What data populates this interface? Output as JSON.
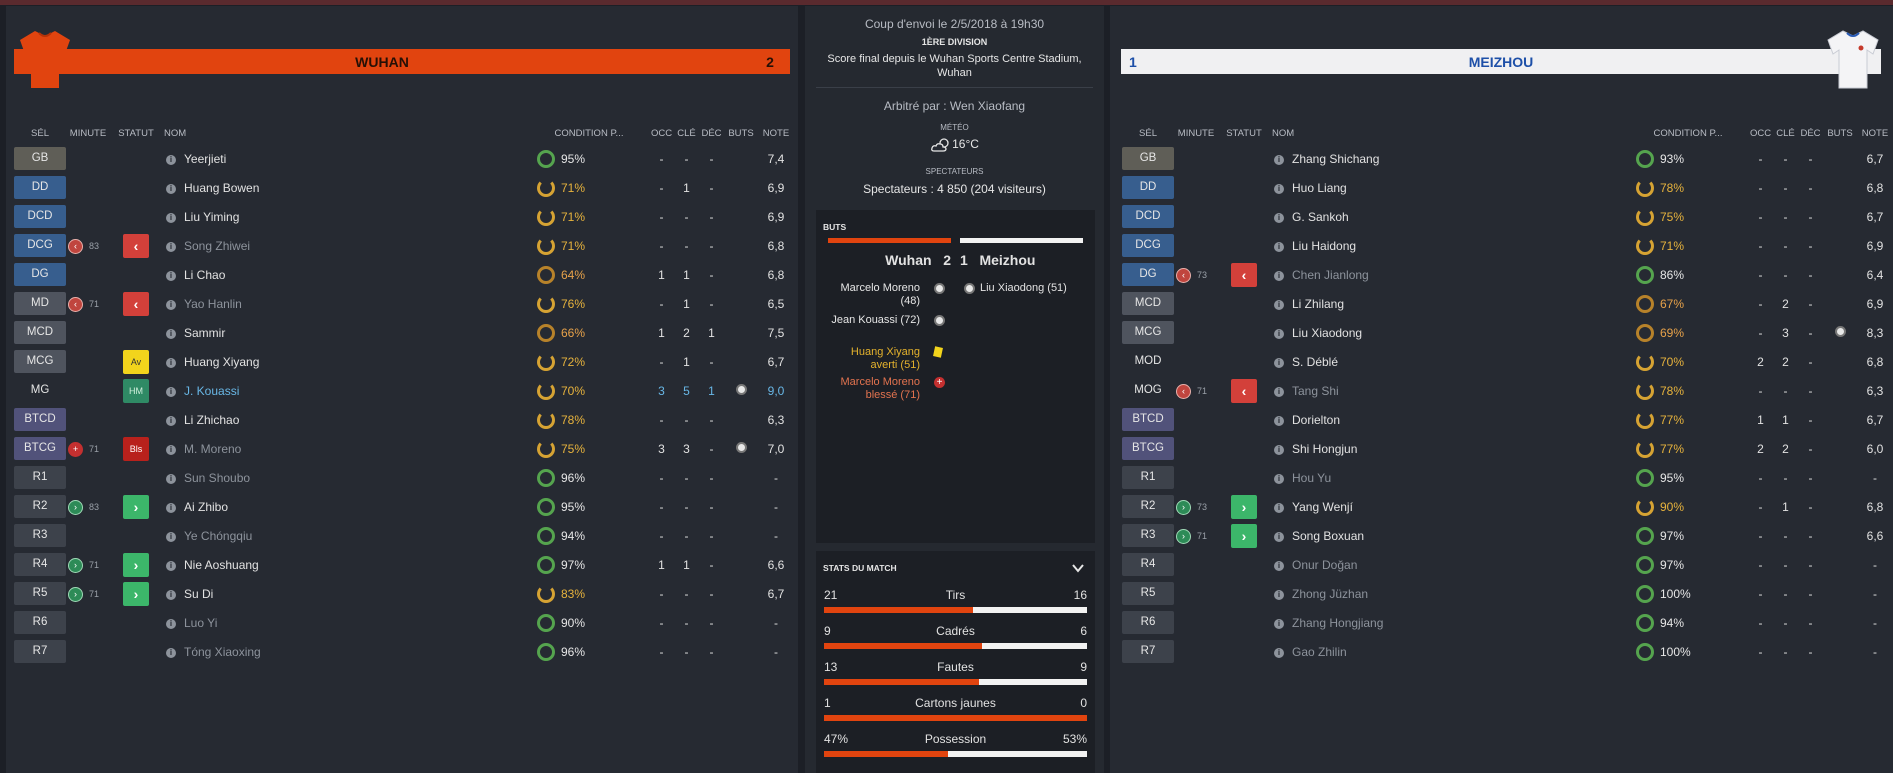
{
  "colors": {
    "home": "#e1440f",
    "away": "#f0f0f2",
    "away_text": "#1d4fa8"
  },
  "home": {
    "name": "WUHAN",
    "score": "2",
    "headers": [
      "SÉL",
      "MINUTE",
      "STATUT",
      "NOM",
      "CONDITION P...",
      "OCC",
      "CLÉ",
      "DÉC",
      "BUTS",
      "NOTE"
    ],
    "players": [
      {
        "pos": "GB",
        "kind": "gk",
        "min_icon": "",
        "min": "",
        "status": "",
        "name": "Yeerjieti",
        "style": "",
        "cond": "95%",
        "ring": "g",
        "occ": "-",
        "cle": "-",
        "dec": "-",
        "buts": "",
        "note": "7,4"
      },
      {
        "pos": "DD",
        "kind": "def",
        "min_icon": "",
        "min": "",
        "status": "",
        "name": "Huang Bowen",
        "style": "",
        "cond": "71%",
        "ring": "y",
        "occ": "-",
        "cle": "1",
        "dec": "-",
        "buts": "",
        "note": "6,9"
      },
      {
        "pos": "DCD",
        "kind": "def",
        "min_icon": "",
        "min": "",
        "status": "",
        "name": "Liu Yiming",
        "style": "",
        "cond": "71%",
        "ring": "y",
        "occ": "-",
        "cle": "-",
        "dec": "-",
        "buts": "",
        "note": "6,9"
      },
      {
        "pos": "DCG",
        "kind": "def",
        "min_icon": "out",
        "min": "83",
        "status": "out",
        "name": "Song Zhiwei",
        "style": "dim",
        "cond": "71%",
        "ring": "y",
        "occ": "-",
        "cle": "-",
        "dec": "-",
        "buts": "",
        "note": "6,8"
      },
      {
        "pos": "DG",
        "kind": "def",
        "min_icon": "",
        "min": "",
        "status": "",
        "name": "Li Chao",
        "style": "",
        "cond": "64%",
        "ring": "o",
        "occ": "1",
        "cle": "1",
        "dec": "-",
        "buts": "",
        "note": "6,8"
      },
      {
        "pos": "MD",
        "kind": "mid",
        "min_icon": "out",
        "min": "71",
        "status": "out",
        "name": "Yao Hanlin",
        "style": "dim",
        "cond": "76%",
        "ring": "y",
        "occ": "-",
        "cle": "1",
        "dec": "-",
        "buts": "",
        "note": "6,5"
      },
      {
        "pos": "MCD",
        "kind": "mid",
        "min_icon": "",
        "min": "",
        "status": "",
        "name": "Sammir",
        "style": "",
        "cond": "66%",
        "ring": "o",
        "occ": "1",
        "cle": "2",
        "dec": "1",
        "buts": "",
        "note": "7,5"
      },
      {
        "pos": "MCG",
        "kind": "mid",
        "min_icon": "",
        "min": "",
        "status": "av",
        "name": "Huang Xiyang",
        "style": "",
        "cond": "72%",
        "ring": "y",
        "occ": "-",
        "cle": "1",
        "dec": "-",
        "buts": "",
        "note": "6,7"
      },
      {
        "pos": "MG",
        "kind": "mod",
        "min_icon": "",
        "min": "",
        "status": "hm",
        "name": "J. Kouassi",
        "style": "hl",
        "cond": "70%",
        "ring": "y",
        "occ": "3",
        "cle": "5",
        "dec": "1",
        "buts": "ball",
        "note": "9,0"
      },
      {
        "pos": "BTCD",
        "kind": "att",
        "min_icon": "",
        "min": "",
        "status": "",
        "name": "Li Zhichao",
        "style": "",
        "cond": "78%",
        "ring": "y",
        "occ": "-",
        "cle": "-",
        "dec": "-",
        "buts": "",
        "note": "6,3"
      },
      {
        "pos": "BTCG",
        "kind": "att",
        "min_icon": "inj",
        "min": "71",
        "status": "bls",
        "name": "M. Moreno",
        "style": "dim",
        "cond": "75%",
        "ring": "y",
        "occ": "3",
        "cle": "3",
        "dec": "-",
        "buts": "ball",
        "note": "7,0"
      },
      {
        "pos": "R1",
        "kind": "sub",
        "min_icon": "",
        "min": "",
        "status": "",
        "name": "Sun Shoubo",
        "style": "dim",
        "cond": "96%",
        "ring": "g",
        "occ": "-",
        "cle": "-",
        "dec": "-",
        "buts": "",
        "note": "-"
      },
      {
        "pos": "R2",
        "kind": "sub",
        "min_icon": "in",
        "min": "83",
        "status": "in",
        "name": "Ai Zhibo",
        "style": "",
        "cond": "95%",
        "ring": "g",
        "occ": "-",
        "cle": "-",
        "dec": "-",
        "buts": "",
        "note": "-"
      },
      {
        "pos": "R3",
        "kind": "sub",
        "min_icon": "",
        "min": "",
        "status": "",
        "name": "Ye Chóngqiu",
        "style": "dim",
        "cond": "94%",
        "ring": "g",
        "occ": "-",
        "cle": "-",
        "dec": "-",
        "buts": "",
        "note": "-"
      },
      {
        "pos": "R4",
        "kind": "sub",
        "min_icon": "in",
        "min": "71",
        "status": "in",
        "name": "Nie Aoshuang",
        "style": "",
        "cond": "97%",
        "ring": "g",
        "occ": "1",
        "cle": "1",
        "dec": "-",
        "buts": "",
        "note": "6,6"
      },
      {
        "pos": "R5",
        "kind": "sub",
        "min_icon": "in",
        "min": "71",
        "status": "in",
        "name": "Su Di",
        "style": "",
        "cond": "83%",
        "ring": "y",
        "occ": "-",
        "cle": "-",
        "dec": "-",
        "buts": "",
        "note": "6,7"
      },
      {
        "pos": "R6",
        "kind": "sub",
        "min_icon": "",
        "min": "",
        "status": "",
        "name": "Luo Yi",
        "style": "dim",
        "cond": "90%",
        "ring": "g",
        "occ": "-",
        "cle": "-",
        "dec": "-",
        "buts": "",
        "note": "-"
      },
      {
        "pos": "R7",
        "kind": "sub",
        "min_icon": "",
        "min": "",
        "status": "",
        "name": "Tóng Xiaoxing",
        "style": "dim",
        "cond": "96%",
        "ring": "g",
        "occ": "-",
        "cle": "-",
        "dec": "-",
        "buts": "",
        "note": "-"
      }
    ]
  },
  "away": {
    "name": "MEIZHOU",
    "score": "1",
    "headers": [
      "SÉL",
      "MINUTE",
      "STATUT",
      "NOM",
      "CONDITION P...",
      "OCC",
      "CLÉ",
      "DÉC",
      "BUTS",
      "NOTE"
    ],
    "players": [
      {
        "pos": "GB",
        "kind": "gk",
        "min_icon": "",
        "min": "",
        "status": "",
        "name": "Zhang Shichang",
        "style": "",
        "cond": "93%",
        "ring": "g",
        "occ": "-",
        "cle": "-",
        "dec": "-",
        "buts": "",
        "note": "6,7"
      },
      {
        "pos": "DD",
        "kind": "def",
        "min_icon": "",
        "min": "",
        "status": "",
        "name": "Huo Liang",
        "style": "",
        "cond": "78%",
        "ring": "y",
        "occ": "-",
        "cle": "-",
        "dec": "-",
        "buts": "",
        "note": "6,8"
      },
      {
        "pos": "DCD",
        "kind": "def",
        "min_icon": "",
        "min": "",
        "status": "",
        "name": "G. Sankoh",
        "style": "",
        "cond": "75%",
        "ring": "y",
        "occ": "-",
        "cle": "-",
        "dec": "-",
        "buts": "",
        "note": "6,7"
      },
      {
        "pos": "DCG",
        "kind": "def",
        "min_icon": "",
        "min": "",
        "status": "",
        "name": "Liu Haidong",
        "style": "",
        "cond": "71%",
        "ring": "y",
        "occ": "-",
        "cle": "-",
        "dec": "-",
        "buts": "",
        "note": "6,9"
      },
      {
        "pos": "DG",
        "kind": "def",
        "min_icon": "out",
        "min": "73",
        "status": "out",
        "name": "Chen Jianlong",
        "style": "dim",
        "cond": "86%",
        "ring": "g",
        "occ": "-",
        "cle": "-",
        "dec": "-",
        "buts": "",
        "note": "6,4"
      },
      {
        "pos": "MCD",
        "kind": "mid",
        "min_icon": "",
        "min": "",
        "status": "",
        "name": "Li Zhilang",
        "style": "",
        "cond": "67%",
        "ring": "o",
        "occ": "-",
        "cle": "2",
        "dec": "-",
        "buts": "",
        "note": "6,9"
      },
      {
        "pos": "MCG",
        "kind": "mid",
        "min_icon": "",
        "min": "",
        "status": "",
        "name": "Liu Xiaodong",
        "style": "",
        "cond": "69%",
        "ring": "o",
        "occ": "-",
        "cle": "3",
        "dec": "-",
        "buts": "ball",
        "note": "8,3"
      },
      {
        "pos": "MOD",
        "kind": "mod",
        "min_icon": "",
        "min": "",
        "status": "",
        "name": "S. Déblé",
        "style": "",
        "cond": "70%",
        "ring": "y",
        "occ": "2",
        "cle": "2",
        "dec": "-",
        "buts": "",
        "note": "6,8"
      },
      {
        "pos": "MOG",
        "kind": "mod",
        "min_icon": "out",
        "min": "71",
        "status": "out",
        "name": "Tang Shi",
        "style": "dim",
        "cond": "78%",
        "ring": "y",
        "occ": "-",
        "cle": "-",
        "dec": "-",
        "buts": "",
        "note": "6,3"
      },
      {
        "pos": "BTCD",
        "kind": "att",
        "min_icon": "",
        "min": "",
        "status": "",
        "name": "Dorielton",
        "style": "",
        "cond": "77%",
        "ring": "y",
        "occ": "1",
        "cle": "1",
        "dec": "-",
        "buts": "",
        "note": "6,7"
      },
      {
        "pos": "BTCG",
        "kind": "att",
        "min_icon": "",
        "min": "",
        "status": "",
        "name": "Shi Hongjun",
        "style": "",
        "cond": "77%",
        "ring": "y",
        "occ": "2",
        "cle": "2",
        "dec": "-",
        "buts": "",
        "note": "6,0"
      },
      {
        "pos": "R1",
        "kind": "sub",
        "min_icon": "",
        "min": "",
        "status": "",
        "name": "Hou Yu",
        "style": "dim",
        "cond": "95%",
        "ring": "g",
        "occ": "-",
        "cle": "-",
        "dec": "-",
        "buts": "",
        "note": "-"
      },
      {
        "pos": "R2",
        "kind": "sub",
        "min_icon": "in",
        "min": "73",
        "status": "in",
        "name": "Yang Wenjí",
        "style": "",
        "cond": "90%",
        "ring": "y",
        "occ": "-",
        "cle": "1",
        "dec": "-",
        "buts": "",
        "note": "6,8"
      },
      {
        "pos": "R3",
        "kind": "sub",
        "min_icon": "in",
        "min": "71",
        "status": "in",
        "name": "Song Boxuan",
        "style": "",
        "cond": "97%",
        "ring": "g",
        "occ": "-",
        "cle": "-",
        "dec": "-",
        "buts": "",
        "note": "6,6"
      },
      {
        "pos": "R4",
        "kind": "sub",
        "min_icon": "",
        "min": "",
        "status": "",
        "name": "Onur Doğan",
        "style": "dim",
        "cond": "97%",
        "ring": "g",
        "occ": "-",
        "cle": "-",
        "dec": "-",
        "buts": "",
        "note": "-"
      },
      {
        "pos": "R5",
        "kind": "sub",
        "min_icon": "",
        "min": "",
        "status": "",
        "name": "Zhong Jüzhan",
        "style": "dim",
        "cond": "100%",
        "ring": "g",
        "occ": "-",
        "cle": "-",
        "dec": "-",
        "buts": "",
        "note": "-"
      },
      {
        "pos": "R6",
        "kind": "sub",
        "min_icon": "",
        "min": "",
        "status": "",
        "name": "Zhang Hongjiang",
        "style": "dim",
        "cond": "94%",
        "ring": "g",
        "occ": "-",
        "cle": "-",
        "dec": "-",
        "buts": "",
        "note": "-"
      },
      {
        "pos": "R7",
        "kind": "sub",
        "min_icon": "",
        "min": "",
        "status": "",
        "name": "Gao Zhilin",
        "style": "dim",
        "cond": "100%",
        "ring": "g",
        "occ": "-",
        "cle": "-",
        "dec": "-",
        "buts": "",
        "note": "-"
      }
    ]
  },
  "match": {
    "kickoff": "Coup d'envoi le 2/5/2018 à 19h30",
    "division": "1ÈRE DIVISION",
    "final_line1": "Score final depuis le Wuhan Sports Centre Stadium,",
    "final_line2": "Wuhan",
    "referee": "Arbitré par : Wen Xiaofang",
    "weather_label": "MÉTÉO",
    "weather_icon": "cloud-sun-icon",
    "temperature": "16°C",
    "spectators_label": "SPECTATEURS",
    "spectators": "Spectateurs : 4 850 (204 visiteurs)"
  },
  "goals": {
    "title": "BUTS",
    "home_team": "Wuhan",
    "home_score": "2",
    "away_team": "Meizhou",
    "away_score": "1",
    "home_events": [
      {
        "text1": "Marcelo Moreno",
        "text2": "(48)",
        "icon": "ball",
        "color": "#e6e6e6"
      },
      {
        "text1": "Jean Kouassi (72)",
        "text2": "",
        "icon": "ball",
        "color": "#e6e6e6"
      },
      {
        "text1": "Huang Xiyang",
        "text2": "averti (51)",
        "icon": "yellow-card",
        "color": "#e4b22d"
      },
      {
        "text1": "Marcelo Moreno",
        "text2": "blessé (71)",
        "icon": "injury",
        "color": "#e2734f"
      }
    ],
    "away_events": [
      {
        "text1": "Liu Xiaodong (51)",
        "icon": "ball"
      }
    ]
  },
  "stats": {
    "title": "STATS DU MATCH",
    "rows": [
      {
        "label": "Tirs",
        "home": "21",
        "away": "16",
        "home_value": 21,
        "away_value": 16
      },
      {
        "label": "Cadrés",
        "home": "9",
        "away": "6",
        "home_value": 9,
        "away_value": 6
      },
      {
        "label": "Fautes",
        "home": "13",
        "away": "9",
        "home_value": 13,
        "away_value": 9
      },
      {
        "label": "Cartons jaunes",
        "home": "1",
        "away": "0",
        "home_value": 1,
        "away_value": 0
      },
      {
        "label": "Possession",
        "home": "47%",
        "away": "53%",
        "home_value": 47,
        "away_value": 53
      }
    ]
  }
}
